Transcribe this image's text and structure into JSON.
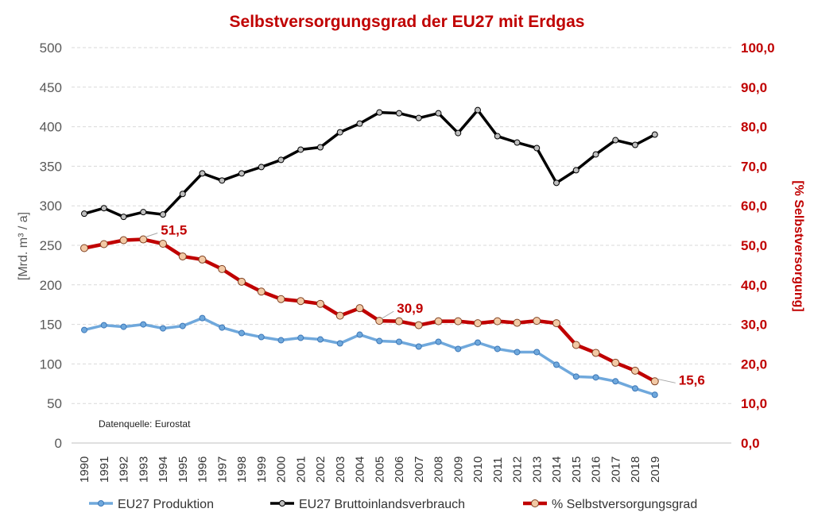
{
  "chart_data": {
    "type": "line",
    "title": "Selbstversorgungsgrad der EU27 mit Erdgas",
    "ylabel_left": "[Mrd. m³ / a]",
    "ylabel_right": "[% Selbstversorgung]",
    "ylim_left": [
      0,
      500
    ],
    "ylim_right": [
      0,
      100
    ],
    "yticks_left": [
      "0",
      "50",
      "100",
      "150",
      "200",
      "250",
      "300",
      "350",
      "400",
      "450",
      "500"
    ],
    "yticks_right": [
      "0,0",
      "10,0",
      "20,0",
      "30,0",
      "40,0",
      "50,0",
      "60,0",
      "70,0",
      "80,0",
      "90,0",
      "100,0"
    ],
    "grid": true,
    "legend_position": "bottom",
    "source_note": "Datenquelle:  Eurostat",
    "x": [
      "1990",
      "1991",
      "1992",
      "1993",
      "1994",
      "1995",
      "1996",
      "1997",
      "1998",
      "1999",
      "2000",
      "2001",
      "2002",
      "2003",
      "2004",
      "2005",
      "2006",
      "2007",
      "2008",
      "2009",
      "2010",
      "2011",
      "2012",
      "2013",
      "2014",
      "2015",
      "2016",
      "2017",
      "2018",
      "2019"
    ],
    "series": [
      {
        "name": "EU27 Produktion",
        "axis": "left",
        "color": "#6fa8dc",
        "values": [
          143,
          149,
          147,
          150,
          145,
          148,
          158,
          146,
          139,
          134,
          130,
          133,
          131,
          126,
          137,
          129,
          128,
          122,
          128,
          119,
          127,
          119,
          115,
          115,
          99,
          84,
          83,
          78,
          69,
          61
        ]
      },
      {
        "name": "EU27 Bruttoinlandsverbrauch",
        "axis": "left",
        "color": "#000000",
        "values": [
          290,
          297,
          286,
          292,
          289,
          315,
          341,
          332,
          341,
          349,
          358,
          371,
          374,
          393,
          404,
          418,
          417,
          411,
          417,
          392,
          421,
          388,
          380,
          373,
          329,
          345,
          365,
          383,
          377,
          390
        ]
      },
      {
        "name": "% Selbstversorgungsgrad",
        "axis": "right",
        "color": "#c00000",
        "values": [
          49.3,
          50.3,
          51.3,
          51.5,
          50.4,
          47.2,
          46.4,
          44.0,
          40.8,
          38.3,
          36.4,
          35.9,
          35.2,
          32.2,
          34.1,
          30.9,
          30.8,
          29.8,
          30.8,
          30.8,
          30.3,
          30.8,
          30.4,
          30.9,
          30.3,
          24.8,
          22.8,
          20.3,
          18.3,
          15.6
        ]
      }
    ],
    "annotations": [
      {
        "series": 2,
        "index": 3,
        "text": "51,5"
      },
      {
        "series": 2,
        "index": 15,
        "text": "30,9"
      },
      {
        "series": 2,
        "index": 29,
        "text": "15,6"
      }
    ]
  }
}
